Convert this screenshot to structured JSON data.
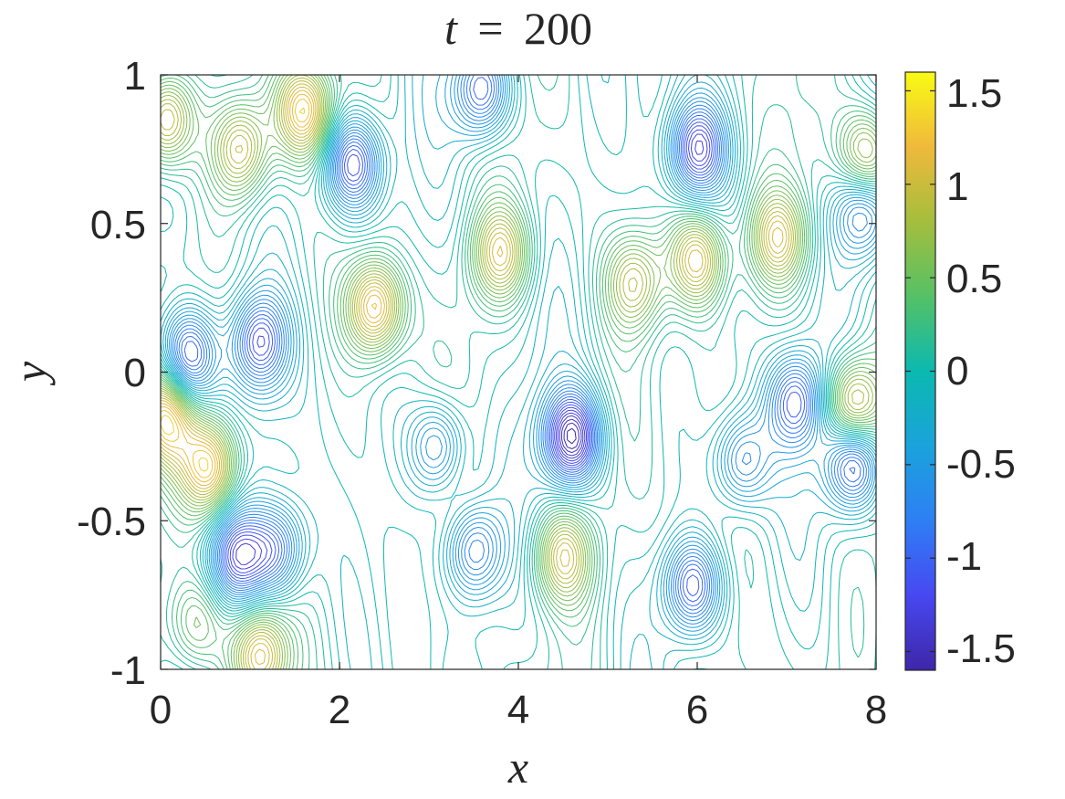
{
  "chart_data": {
    "type": "heatmap",
    "style": "contour lines",
    "title": {
      "var": "t",
      "eq": "=",
      "val": "200"
    },
    "xlabel": "x",
    "ylabel": "y",
    "xlim": [
      0,
      8
    ],
    "ylim": [
      -1,
      1
    ],
    "xticks": [
      "0",
      "2",
      "4",
      "6",
      "8"
    ],
    "yticks": [
      "1",
      "0.5",
      "0",
      "-0.5",
      "-1"
    ],
    "colorbar": {
      "colormap": "parula",
      "clim": [
        -1.6,
        1.6
      ],
      "ticks": [
        "1.5",
        "1",
        "0.5",
        "0",
        "-0.5",
        "-1",
        "-1.5"
      ]
    },
    "blobs": [
      {
        "x": 4.6,
        "y": -0.22,
        "value": -1.55
      },
      {
        "x": 0.55,
        "y": -0.32,
        "value": 1.3
      },
      {
        "x": 2.4,
        "y": 0.22,
        "value": 1.35
      },
      {
        "x": 6.0,
        "y": 0.38,
        "value": 1.15
      },
      {
        "x": 4.5,
        "y": -0.62,
        "value": 1.0
      },
      {
        "x": 1.1,
        "y": -0.95,
        "value": 1.15
      },
      {
        "x": 0.3,
        "y": 0.05,
        "value": -1.3
      },
      {
        "x": 1.1,
        "y": 0.1,
        "value": -1.1
      },
      {
        "x": 0.05,
        "y": 0.85,
        "value": 1.2
      },
      {
        "x": 0.05,
        "y": -0.15,
        "value": 1.2
      },
      {
        "x": 7.75,
        "y": -0.12,
        "value": 1.25
      },
      {
        "x": 7.9,
        "y": 0.72,
        "value": 1.1
      },
      {
        "x": 7.75,
        "y": -0.3,
        "value": -1.25
      },
      {
        "x": 2.15,
        "y": 0.7,
        "value": -1.25
      },
      {
        "x": 1.6,
        "y": 0.88,
        "value": 1.3
      },
      {
        "x": 0.9,
        "y": 0.75,
        "value": 1.0
      },
      {
        "x": 6.0,
        "y": 0.75,
        "value": -1.2
      },
      {
        "x": 5.95,
        "y": -0.72,
        "value": -1.1
      },
      {
        "x": 3.6,
        "y": 0.95,
        "value": -1.1
      },
      {
        "x": 3.8,
        "y": 0.4,
        "value": 1.0
      },
      {
        "x": 6.9,
        "y": 0.45,
        "value": 1.0
      },
      {
        "x": 7.1,
        "y": -0.1,
        "value": -1.0
      },
      {
        "x": 0.85,
        "y": -0.62,
        "value": -1.1
      },
      {
        "x": 1.3,
        "y": -0.6,
        "value": -0.95
      },
      {
        "x": 3.5,
        "y": -0.6,
        "value": -0.9
      },
      {
        "x": 7.85,
        "y": 0.55,
        "value": -0.95
      },
      {
        "x": 3.1,
        "y": -0.25,
        "value": -0.8
      },
      {
        "x": 5.3,
        "y": 0.3,
        "value": 0.85
      },
      {
        "x": 6.5,
        "y": -0.3,
        "value": -0.8
      },
      {
        "x": 0.4,
        "y": -0.85,
        "value": 0.6
      }
    ],
    "grid": false
  }
}
